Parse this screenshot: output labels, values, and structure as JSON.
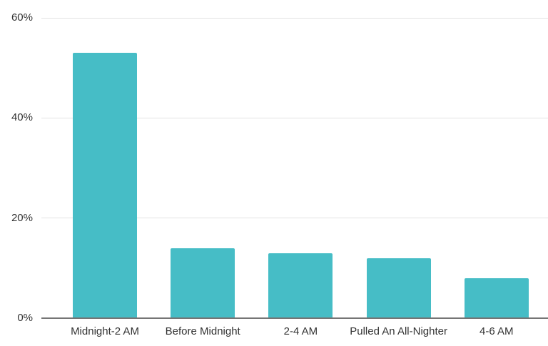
{
  "chart_data": {
    "type": "bar",
    "title": "",
    "xlabel": "",
    "ylabel": "",
    "categories": [
      "Midnight-2 AM",
      "Before Midnight",
      "2-4 AM",
      "Pulled An All-Nighter",
      "4-6 AM"
    ],
    "values": [
      53,
      14,
      13,
      12,
      8
    ],
    "ylim": [
      0,
      60
    ],
    "yticks": [
      0,
      20,
      40,
      60
    ],
    "ytick_labels": [
      "0%",
      "20%",
      "40%",
      "60%"
    ],
    "grid": true,
    "legend": false,
    "colors": {
      "bar": "#46bdc6",
      "gridline": "#e3e3e3",
      "axis_line": "#757575",
      "tick_text": "#333333",
      "category_text": "#333333",
      "background": "#ffffff"
    }
  }
}
